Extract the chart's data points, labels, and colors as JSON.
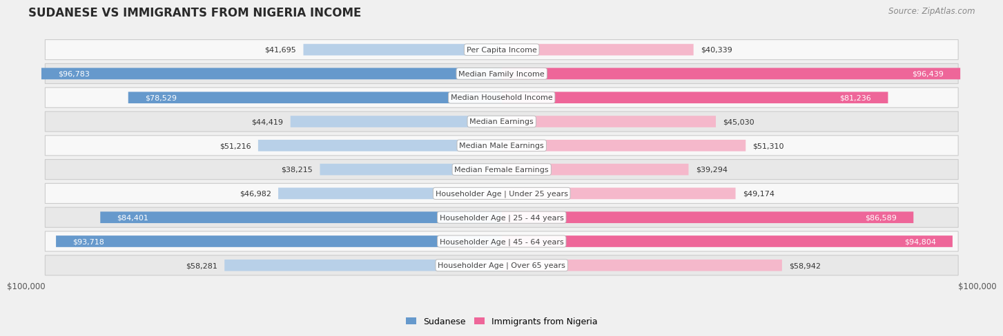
{
  "title": "SUDANESE VS IMMIGRANTS FROM NIGERIA INCOME",
  "source": "Source: ZipAtlas.com",
  "categories": [
    "Per Capita Income",
    "Median Family Income",
    "Median Household Income",
    "Median Earnings",
    "Median Male Earnings",
    "Median Female Earnings",
    "Householder Age | Under 25 years",
    "Householder Age | 25 - 44 years",
    "Householder Age | 45 - 64 years",
    "Householder Age | Over 65 years"
  ],
  "sudanese_values": [
    41695,
    96783,
    78529,
    44419,
    51216,
    38215,
    46982,
    84401,
    93718,
    58281
  ],
  "nigeria_values": [
    40339,
    96439,
    81236,
    45030,
    51310,
    39294,
    49174,
    86589,
    94804,
    58942
  ],
  "sudanese_labels": [
    "$41,695",
    "$96,783",
    "$78,529",
    "$44,419",
    "$51,216",
    "$38,215",
    "$46,982",
    "$84,401",
    "$93,718",
    "$58,281"
  ],
  "nigeria_labels": [
    "$40,339",
    "$96,439",
    "$81,236",
    "$45,030",
    "$51,310",
    "$39,294",
    "$49,174",
    "$86,589",
    "$94,804",
    "$58,942"
  ],
  "max_value": 100000,
  "sudanese_light": "#b8d0e8",
  "sudanese_dark": "#6699cc",
  "nigeria_light": "#f5b8cb",
  "nigeria_dark": "#ee6699",
  "bg_color": "#f0f0f0",
  "row_bg_light": "#f8f8f8",
  "row_bg_dark": "#e8e8e8",
  "full_threshold": 70000,
  "legend_sudanese": "Sudanese",
  "legend_nigeria": "Immigrants from Nigeria",
  "x_label_left": "$100,000",
  "x_label_right": "$100,000"
}
